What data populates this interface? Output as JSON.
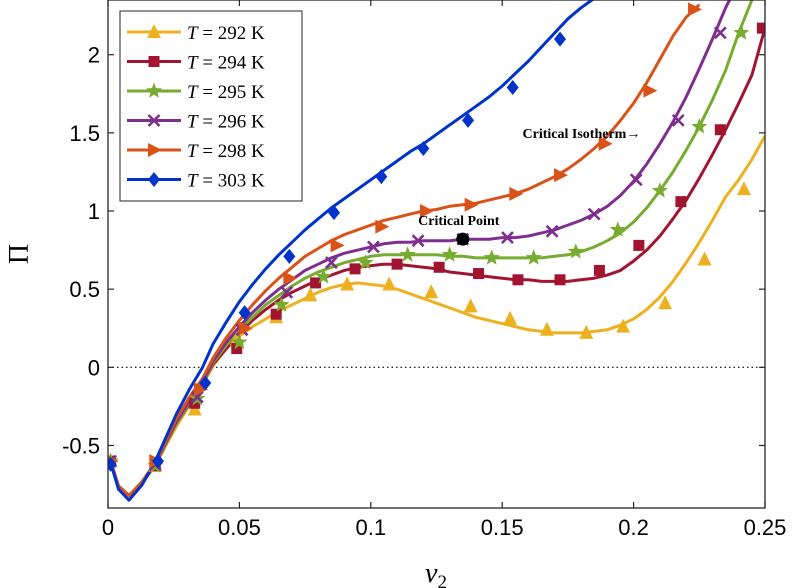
{
  "chart_data": {
    "type": "line",
    "title": "",
    "xlabel": "v_2",
    "ylabel": "Π",
    "xlim": [
      0,
      0.25
    ],
    "ylim": [
      -0.9,
      2.35
    ],
    "xticks": [
      0,
      0.05,
      0.1,
      0.15,
      0.2,
      0.25
    ],
    "xtick_labels": [
      "0",
      "0.05",
      "0.1",
      "0.15",
      "0.2",
      "0.25"
    ],
    "yticks": [
      -0.5,
      0,
      0.5,
      1,
      1.5,
      2
    ],
    "ytick_labels": [
      "-0.5",
      "0",
      "0.5",
      "1",
      "1.5",
      "2"
    ],
    "zero_line": true,
    "grid": false,
    "legend_position": "top-left",
    "series": [
      {
        "name": "T = 292 K",
        "temp": "292",
        "unit": "K",
        "color": "#EDB120",
        "marker": "triangle-up",
        "x": [
          0.001,
          0.004,
          0.008,
          0.013,
          0.018,
          0.022,
          0.026,
          0.031,
          0.036,
          0.04,
          0.045,
          0.05,
          0.055,
          0.06,
          0.065,
          0.07,
          0.075,
          0.08,
          0.085,
          0.09,
          0.095,
          0.1,
          0.105,
          0.11,
          0.115,
          0.12,
          0.125,
          0.13,
          0.135,
          0.14,
          0.145,
          0.15,
          0.155,
          0.16,
          0.165,
          0.17,
          0.175,
          0.18,
          0.185,
          0.19,
          0.195,
          0.2,
          0.205,
          0.21,
          0.215,
          0.22,
          0.225,
          0.23,
          0.235,
          0.24,
          0.245,
          0.25
        ],
        "y": [
          -0.6,
          -0.76,
          -0.82,
          -0.74,
          -0.63,
          -0.5,
          -0.38,
          -0.24,
          -0.11,
          0.01,
          0.12,
          0.2,
          0.26,
          0.31,
          0.36,
          0.4,
          0.44,
          0.48,
          0.51,
          0.53,
          0.54,
          0.53,
          0.52,
          0.5,
          0.47,
          0.44,
          0.41,
          0.38,
          0.35,
          0.32,
          0.3,
          0.28,
          0.26,
          0.24,
          0.23,
          0.22,
          0.22,
          0.22,
          0.23,
          0.24,
          0.27,
          0.31,
          0.37,
          0.45,
          0.55,
          0.67,
          0.8,
          0.94,
          1.09,
          1.2,
          1.33,
          1.48
        ]
      },
      {
        "name": "T = 294 K",
        "temp": "294",
        "unit": "K",
        "color": "#A2142F",
        "marker": "square",
        "x": [
          0.001,
          0.004,
          0.008,
          0.013,
          0.018,
          0.022,
          0.026,
          0.031,
          0.036,
          0.04,
          0.045,
          0.05,
          0.055,
          0.06,
          0.065,
          0.07,
          0.075,
          0.08,
          0.085,
          0.09,
          0.095,
          0.1,
          0.105,
          0.11,
          0.115,
          0.12,
          0.125,
          0.13,
          0.135,
          0.14,
          0.145,
          0.15,
          0.155,
          0.16,
          0.165,
          0.17,
          0.175,
          0.18,
          0.185,
          0.19,
          0.195,
          0.2,
          0.205,
          0.21,
          0.215,
          0.22,
          0.225,
          0.23,
          0.235,
          0.24,
          0.245,
          0.25
        ],
        "y": [
          -0.6,
          -0.76,
          -0.82,
          -0.74,
          -0.62,
          -0.49,
          -0.36,
          -0.23,
          -0.1,
          0.02,
          0.12,
          0.22,
          0.3,
          0.37,
          0.43,
          0.48,
          0.52,
          0.56,
          0.59,
          0.62,
          0.64,
          0.65,
          0.66,
          0.66,
          0.65,
          0.64,
          0.63,
          0.61,
          0.6,
          0.59,
          0.58,
          0.57,
          0.56,
          0.56,
          0.55,
          0.55,
          0.55,
          0.56,
          0.57,
          0.59,
          0.62,
          0.68,
          0.75,
          0.84,
          0.95,
          1.07,
          1.21,
          1.36,
          1.52,
          1.69,
          1.87,
          2.17
        ]
      },
      {
        "name": "T = 295 K",
        "temp": "295",
        "unit": "K",
        "color": "#77AC30",
        "marker": "star",
        "x": [
          0.001,
          0.004,
          0.008,
          0.013,
          0.018,
          0.022,
          0.026,
          0.031,
          0.036,
          0.04,
          0.045,
          0.05,
          0.055,
          0.06,
          0.065,
          0.07,
          0.075,
          0.08,
          0.085,
          0.09,
          0.095,
          0.1,
          0.105,
          0.11,
          0.115,
          0.12,
          0.125,
          0.13,
          0.135,
          0.14,
          0.145,
          0.15,
          0.155,
          0.16,
          0.165,
          0.17,
          0.175,
          0.18,
          0.185,
          0.19,
          0.195,
          0.2,
          0.205,
          0.21,
          0.215,
          0.22,
          0.225,
          0.23,
          0.235,
          0.24,
          0.245
        ],
        "y": [
          -0.6,
          -0.76,
          -0.82,
          -0.74,
          -0.62,
          -0.49,
          -0.36,
          -0.22,
          -0.1,
          0.03,
          0.14,
          0.24,
          0.32,
          0.4,
          0.46,
          0.52,
          0.57,
          0.61,
          0.64,
          0.67,
          0.69,
          0.71,
          0.72,
          0.72,
          0.72,
          0.72,
          0.72,
          0.71,
          0.71,
          0.7,
          0.7,
          0.7,
          0.7,
          0.7,
          0.7,
          0.71,
          0.72,
          0.74,
          0.77,
          0.81,
          0.86,
          0.93,
          1.02,
          1.13,
          1.25,
          1.39,
          1.54,
          1.71,
          1.9,
          2.14,
          2.35
        ]
      },
      {
        "name": "T = 296 K",
        "temp": "296",
        "unit": "K",
        "color": "#7E2F8E",
        "marker": "x",
        "x": [
          0.001,
          0.004,
          0.008,
          0.013,
          0.018,
          0.022,
          0.026,
          0.031,
          0.036,
          0.04,
          0.045,
          0.05,
          0.055,
          0.06,
          0.065,
          0.07,
          0.075,
          0.08,
          0.085,
          0.09,
          0.095,
          0.1,
          0.105,
          0.11,
          0.115,
          0.12,
          0.125,
          0.13,
          0.135,
          0.14,
          0.145,
          0.15,
          0.155,
          0.16,
          0.165,
          0.17,
          0.175,
          0.18,
          0.185,
          0.19,
          0.195,
          0.2,
          0.205,
          0.21,
          0.215,
          0.22,
          0.225,
          0.23,
          0.235,
          0.238
        ],
        "y": [
          -0.6,
          -0.76,
          -0.82,
          -0.74,
          -0.62,
          -0.48,
          -0.35,
          -0.21,
          -0.09,
          0.04,
          0.16,
          0.26,
          0.35,
          0.43,
          0.5,
          0.56,
          0.62,
          0.66,
          0.7,
          0.73,
          0.75,
          0.77,
          0.79,
          0.8,
          0.8,
          0.81,
          0.81,
          0.81,
          0.82,
          0.82,
          0.82,
          0.83,
          0.83,
          0.84,
          0.86,
          0.88,
          0.91,
          0.94,
          0.98,
          1.03,
          1.1,
          1.19,
          1.3,
          1.43,
          1.57,
          1.73,
          1.91,
          2.1,
          2.3,
          2.4
        ]
      },
      {
        "name": "T = 298 K",
        "temp": "298",
        "unit": "K",
        "color": "#D95319",
        "marker": "triangle-right",
        "x": [
          0.001,
          0.004,
          0.008,
          0.013,
          0.018,
          0.022,
          0.026,
          0.031,
          0.036,
          0.04,
          0.045,
          0.05,
          0.055,
          0.06,
          0.065,
          0.07,
          0.075,
          0.08,
          0.085,
          0.09,
          0.095,
          0.1,
          0.105,
          0.11,
          0.115,
          0.12,
          0.125,
          0.13,
          0.135,
          0.14,
          0.145,
          0.15,
          0.155,
          0.16,
          0.165,
          0.17,
          0.175,
          0.18,
          0.185,
          0.19,
          0.195,
          0.2,
          0.205,
          0.21,
          0.215,
          0.22,
          0.225
        ],
        "y": [
          -0.6,
          -0.76,
          -0.82,
          -0.73,
          -0.61,
          -0.47,
          -0.33,
          -0.19,
          -0.07,
          0.06,
          0.19,
          0.3,
          0.4,
          0.49,
          0.57,
          0.64,
          0.71,
          0.76,
          0.81,
          0.85,
          0.88,
          0.91,
          0.94,
          0.96,
          0.98,
          1.0,
          1.01,
          1.03,
          1.04,
          1.05,
          1.07,
          1.09,
          1.11,
          1.14,
          1.18,
          1.22,
          1.27,
          1.33,
          1.4,
          1.48,
          1.58,
          1.69,
          1.82,
          1.97,
          2.12,
          2.24,
          2.32
        ]
      },
      {
        "name": "T = 303 K",
        "temp": "303",
        "unit": "K",
        "color": "#0033CC",
        "marker": "diamond",
        "x": [
          0.001,
          0.004,
          0.008,
          0.013,
          0.018,
          0.022,
          0.026,
          0.031,
          0.036,
          0.04,
          0.045,
          0.05,
          0.055,
          0.06,
          0.065,
          0.07,
          0.075,
          0.08,
          0.085,
          0.09,
          0.095,
          0.1,
          0.105,
          0.11,
          0.115,
          0.12,
          0.125,
          0.13,
          0.135,
          0.14,
          0.145,
          0.15,
          0.155,
          0.16,
          0.165,
          0.17,
          0.175,
          0.18,
          0.185,
          0.187
        ],
        "y": [
          -0.61,
          -0.78,
          -0.85,
          -0.75,
          -0.6,
          -0.45,
          -0.3,
          -0.14,
          0.0,
          0.15,
          0.29,
          0.42,
          0.53,
          0.63,
          0.72,
          0.8,
          0.88,
          0.95,
          1.02,
          1.08,
          1.14,
          1.2,
          1.26,
          1.32,
          1.38,
          1.43,
          1.49,
          1.55,
          1.61,
          1.67,
          1.73,
          1.8,
          1.88,
          1.96,
          2.05,
          2.14,
          2.23,
          2.3,
          2.36,
          2.4
        ]
      }
    ],
    "markers": [
      {
        "series": "T = 292 K",
        "x": [
          0.001,
          0.018,
          0.033,
          0.049,
          0.064,
          0.077,
          0.091,
          0.107,
          0.123,
          0.138,
          0.153,
          0.167,
          0.182,
          0.196,
          0.212,
          0.227,
          0.242
        ],
        "y": [
          -0.6,
          -0.63,
          -0.27,
          0.18,
          0.32,
          0.46,
          0.53,
          0.53,
          0.48,
          0.39,
          0.31,
          0.24,
          0.22,
          0.26,
          0.41,
          0.69,
          1.14
        ]
      },
      {
        "series": "T = 294 K",
        "x": [
          0.001,
          0.018,
          0.033,
          0.049,
          0.064,
          0.079,
          0.094,
          0.11,
          0.126,
          0.141,
          0.156,
          0.172,
          0.187,
          0.202,
          0.218,
          0.233,
          0.249
        ],
        "y": [
          -0.6,
          -0.63,
          -0.23,
          0.12,
          0.34,
          0.54,
          0.63,
          0.66,
          0.64,
          0.6,
          0.56,
          0.56,
          0.62,
          0.78,
          1.06,
          1.52,
          2.17
        ]
      },
      {
        "series": "T = 295 K",
        "x": [
          0.001,
          0.018,
          0.034,
          0.05,
          0.066,
          0.082,
          0.098,
          0.114,
          0.13,
          0.146,
          0.162,
          0.178,
          0.194,
          0.21,
          0.225,
          0.241
        ],
        "y": [
          -0.6,
          -0.63,
          -0.2,
          0.16,
          0.4,
          0.58,
          0.67,
          0.72,
          0.72,
          0.7,
          0.7,
          0.74,
          0.88,
          1.13,
          1.54,
          2.14
        ]
      },
      {
        "series": "T = 296 K",
        "x": [
          0.001,
          0.018,
          0.034,
          0.051,
          0.068,
          0.085,
          0.101,
          0.118,
          0.135,
          0.152,
          0.169,
          0.185,
          0.201,
          0.217,
          0.233
        ],
        "y": [
          -0.6,
          -0.62,
          -0.19,
          0.24,
          0.48,
          0.67,
          0.77,
          0.81,
          0.82,
          0.83,
          0.87,
          0.98,
          1.2,
          1.58,
          2.14
        ]
      },
      {
        "series": "T = 298 K",
        "x": [
          0.001,
          0.018,
          0.035,
          0.052,
          0.069,
          0.087,
          0.104,
          0.121,
          0.138,
          0.155,
          0.172,
          0.189,
          0.206,
          0.223
        ],
        "y": [
          -0.6,
          -0.6,
          -0.14,
          0.25,
          0.57,
          0.78,
          0.9,
          1.0,
          1.04,
          1.11,
          1.23,
          1.43,
          1.77,
          2.29
        ]
      },
      {
        "series": "T = 303 K",
        "x": [
          0.001,
          0.019,
          0.037,
          0.052,
          0.069,
          0.086,
          0.104,
          0.12,
          0.137,
          0.154,
          0.172
        ],
        "y": [
          -0.62,
          -0.6,
          -0.1,
          0.35,
          0.71,
          0.99,
          1.22,
          1.4,
          1.58,
          1.79,
          2.1
        ]
      }
    ],
    "critical_point": {
      "label": "Critical Point",
      "x": 0.135,
      "y": 0.82
    },
    "annotations": [
      {
        "text": "Critical Isotherm→",
        "x": 0.187,
        "y": 1.5
      }
    ]
  }
}
